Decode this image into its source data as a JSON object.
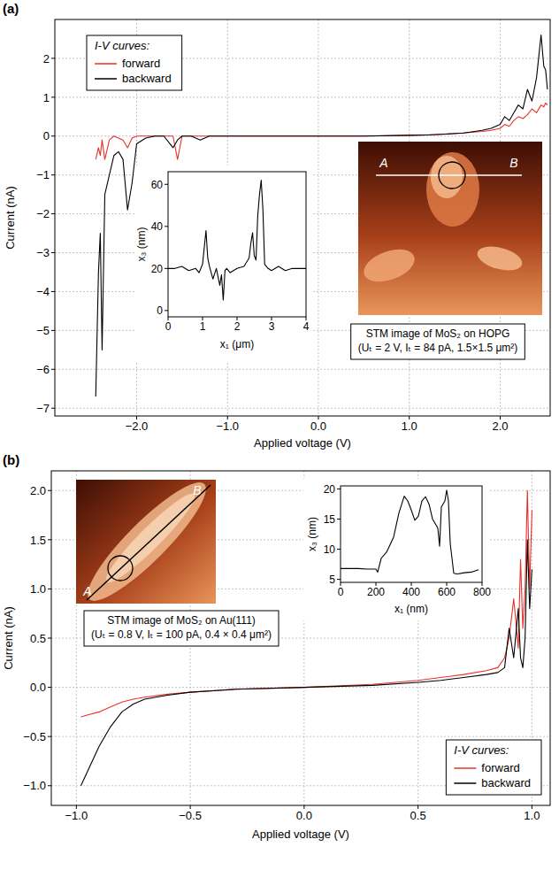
{
  "chart_data": [
    {
      "type": "line",
      "panel": "(a)",
      "x_label": "Applied voltage (V)",
      "y_label": "Current (nA)",
      "x": [
        -2.45,
        -2.42,
        -2.4,
        -2.38,
        -2.35,
        -2.3,
        -2.25,
        -2.2,
        -2.15,
        -2.1,
        -2.05,
        -2.0,
        -1.9,
        -1.8,
        -1.7,
        -1.6,
        -1.55,
        -1.5,
        -1.4,
        -1.3,
        -1.2,
        -1.0,
        -0.5,
        0,
        0.5,
        1.0,
        1.2,
        1.4,
        1.6,
        1.8,
        1.9,
        2.0,
        2.05,
        2.1,
        2.15,
        2.2,
        2.25,
        2.3,
        2.35,
        2.4,
        2.45,
        2.48,
        2.5,
        2.52
      ],
      "series": [
        {
          "name": "forward",
          "color": "#e8302a",
          "values": [
            -0.6,
            -0.3,
            -0.5,
            -0.1,
            -0.6,
            -0.1,
            0.0,
            -0.05,
            -0.1,
            -0.3,
            -0.05,
            0.0,
            0.0,
            0.0,
            0.0,
            0.0,
            -0.6,
            0.0,
            0.0,
            0.0,
            0.0,
            0.0,
            0.0,
            0.0,
            0.0,
            0.02,
            0.03,
            0.05,
            0.08,
            0.12,
            0.15,
            0.2,
            0.3,
            0.25,
            0.4,
            0.5,
            0.45,
            0.55,
            0.7,
            0.6,
            0.8,
            0.75,
            0.85,
            0.8
          ]
        },
        {
          "name": "backward",
          "color": "#000000",
          "values": [
            -6.7,
            -3.5,
            -2.5,
            -5.5,
            -1.5,
            -1.0,
            -0.5,
            -0.4,
            -0.6,
            -1.9,
            -1.2,
            -0.2,
            -0.05,
            0.0,
            0.0,
            -0.3,
            -0.1,
            0.0,
            0.0,
            -0.1,
            0.0,
            0.0,
            0.0,
            0.0,
            0.0,
            0.02,
            0.03,
            0.05,
            0.08,
            0.15,
            0.2,
            0.3,
            0.5,
            0.4,
            0.6,
            0.8,
            0.7,
            1.2,
            0.9,
            1.5,
            2.6,
            1.8,
            1.7,
            1.2
          ]
        }
      ],
      "xlim": [
        -2.9,
        2.55
      ],
      "xticks": [
        {
          "value": -2,
          "label": "−2.0"
        },
        {
          "value": -1,
          "label": "−1.0"
        },
        {
          "value": 0,
          "label": "0.0"
        },
        {
          "value": 1,
          "label": "1.0"
        },
        {
          "value": 2,
          "label": "2.0"
        }
      ],
      "ylim": [
        -7.2,
        3.0
      ],
      "yticks": [
        {
          "value": -7,
          "label": "−7"
        },
        {
          "value": -6,
          "label": "−6"
        },
        {
          "value": -5,
          "label": "−5"
        },
        {
          "value": -4,
          "label": "−4"
        },
        {
          "value": -3,
          "label": "−3"
        },
        {
          "value": -2,
          "label": "−2"
        },
        {
          "value": -1,
          "label": "−1"
        },
        0,
        1,
        2
      ],
      "grid": true,
      "legend": "upper left",
      "legend_title": "I-V curves:",
      "image": {
        "labels": [
          "A",
          "B"
        ],
        "caption": [
          "STM image of MoS₂ on HOPG",
          "(Uₜ = 2 V, Iₜ = 84 pA, 1.5×1.5 μm²)"
        ]
      },
      "inset": {
        "type": "line",
        "x_label": "x₁ (μm)",
        "y_label": "x₃ (nm)",
        "x": [
          0,
          0.2,
          0.4,
          0.6,
          0.8,
          0.9,
          1.0,
          1.05,
          1.1,
          1.15,
          1.2,
          1.3,
          1.4,
          1.5,
          1.55,
          1.6,
          1.65,
          1.7,
          1.8,
          2.0,
          2.2,
          2.35,
          2.4,
          2.45,
          2.5,
          2.55,
          2.6,
          2.65,
          2.7,
          2.75,
          2.8,
          2.9,
          3.0,
          3.2,
          3.4,
          3.6,
          3.8,
          4.0
        ],
        "series": [
          {
            "color": "#000000",
            "values": [
              20,
              20,
              21,
              19,
              20,
              18,
              22,
              30,
              38,
              25,
              21,
              15,
              20,
              12,
              17,
              5,
              19,
              20,
              18,
              20,
              21,
              25,
              32,
              37,
              26,
              24,
              45,
              55,
              62,
              48,
              22,
              20,
              19,
              21,
              19,
              20,
              20,
              20
            ]
          }
        ],
        "xlim": [
          0,
          4
        ],
        "xticks": [
          0,
          1,
          2,
          3,
          4
        ],
        "ylim": [
          -3,
          66
        ],
        "yticks": [
          0,
          20,
          40,
          60
        ],
        "grid": false
      }
    },
    {
      "type": "line",
      "panel": "(b)",
      "x_label": "Applied voltage (V)",
      "y_label": "Current (nA)",
      "x": [
        -0.98,
        -0.95,
        -0.9,
        -0.85,
        -0.8,
        -0.75,
        -0.7,
        -0.6,
        -0.5,
        -0.3,
        0.0,
        0.3,
        0.5,
        0.6,
        0.7,
        0.8,
        0.85,
        0.88,
        0.9,
        0.92,
        0.94,
        0.95,
        0.96,
        0.97,
        0.98,
        0.99,
        1.0
      ],
      "series": [
        {
          "name": "forward",
          "color": "#e8302a",
          "values": [
            -0.3,
            -0.28,
            -0.25,
            -0.2,
            -0.15,
            -0.12,
            -0.1,
            -0.07,
            -0.05,
            -0.02,
            0.0,
            0.03,
            0.07,
            0.1,
            0.13,
            0.17,
            0.2,
            0.3,
            0.5,
            0.9,
            0.4,
            1.3,
            0.6,
            1.0,
            2.0,
            1.0,
            1.8
          ]
        },
        {
          "name": "backward",
          "color": "#000000",
          "values": [
            -1.0,
            -0.85,
            -0.6,
            -0.4,
            -0.25,
            -0.17,
            -0.12,
            -0.08,
            -0.05,
            -0.02,
            0.0,
            0.02,
            0.05,
            0.07,
            0.1,
            0.13,
            0.15,
            0.2,
            0.6,
            0.3,
            0.8,
            0.3,
            0.2,
            0.5,
            1.5,
            0.8,
            1.2
          ]
        }
      ],
      "xlim": [
        -1.11,
        1.08
      ],
      "xticks": [
        {
          "value": -1,
          "label": "−1.0"
        },
        {
          "value": -0.5,
          "label": "−0.5"
        },
        {
          "value": 0,
          "label": "0.0"
        },
        0.5,
        {
          "value": 1,
          "label": "1.0"
        }
      ],
      "ylim": [
        -1.2,
        2.2
      ],
      "yticks": [
        {
          "value": -1,
          "label": "−1.0"
        },
        {
          "value": -0.5,
          "label": "−0.5"
        },
        {
          "value": 0,
          "label": "0.0"
        },
        0.5,
        {
          "value": 1,
          "label": "1.0"
        },
        1.5,
        {
          "value": 2,
          "label": "2.0"
        }
      ],
      "grid": true,
      "legend": "lower right",
      "legend_title": "I-V curves:",
      "image": {
        "labels": [
          "A",
          "B"
        ],
        "caption": [
          "STM image of MoS₂ on Au(111)",
          "(Uₜ = 0.8 V, Iₜ = 100 pA, 0.4 × 0.4 μm²)"
        ]
      },
      "inset": {
        "type": "line",
        "x_label": "x₁ (nm)",
        "y_label": "x₃ (nm)",
        "x": [
          0,
          50,
          100,
          150,
          200,
          210,
          230,
          260,
          300,
          330,
          360,
          380,
          400,
          420,
          440,
          460,
          480,
          500,
          520,
          540,
          550,
          560,
          570,
          590,
          600,
          610,
          620,
          640,
          660,
          700,
          740,
          780
        ],
        "series": [
          {
            "color": "#000000",
            "values": [
              6.8,
              6.8,
              6.8,
              6.7,
              6.7,
              6.2,
              8.5,
              9.5,
              12,
              16,
              18.8,
              18,
              16.5,
              14.8,
              15.5,
              18,
              18.7,
              17.5,
              15,
              14,
              13.5,
              10.5,
              17,
              18,
              19.8,
              18,
              11,
              6,
              5.9,
              6.1,
              6.2,
              6.6
            ]
          }
        ],
        "xlim": [
          0,
          800
        ],
        "xticks": [
          0,
          200,
          400,
          600,
          800
        ],
        "ylim": [
          4.5,
          20.5
        ],
        "yticks": [
          5,
          10,
          15,
          20
        ],
        "grid": false
      }
    }
  ]
}
